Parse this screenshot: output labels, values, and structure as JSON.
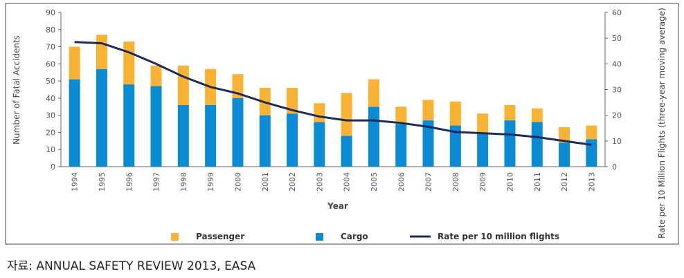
{
  "chart_data": {
    "type": "bar",
    "stacked": true,
    "xlabel": "Year",
    "ylabel": "Number of Fatal Accidents",
    "y2label": "Rate per 10 Million Flights (three-year moving average)",
    "categories": [
      "1994",
      "1995",
      "1996",
      "1997",
      "1998",
      "1999",
      "2000",
      "2001",
      "2002",
      "2003",
      "2004",
      "2005",
      "2006",
      "2007",
      "2008",
      "2009",
      "2010",
      "2011",
      "2012",
      "2013"
    ],
    "series": [
      {
        "name": "Cargo",
        "color": "#0b8bd3",
        "values": [
          51,
          57,
          48,
          47,
          36,
          36,
          40,
          30,
          31,
          26,
          18,
          35,
          25,
          27,
          24,
          20,
          27,
          26,
          14,
          16
        ]
      },
      {
        "name": "Passenger",
        "color": "#f8b334",
        "values": [
          19,
          20,
          25,
          12,
          23,
          21,
          14,
          16,
          15,
          11,
          25,
          16,
          10,
          12,
          14,
          11,
          9,
          8,
          9,
          8
        ]
      },
      {
        "name": "Rate per 10 million flights",
        "type": "line",
        "axis": "y2",
        "color": "#1d2a5e",
        "values": [
          48.5,
          48,
          44.5,
          40,
          35,
          31,
          28.5,
          25,
          22,
          19.5,
          18,
          18,
          17,
          15.5,
          13.5,
          13,
          12.5,
          11.5,
          10,
          8.5
        ]
      }
    ],
    "legend_order": [
      1,
      0,
      2
    ],
    "ylim": [
      0,
      90
    ],
    "yticks": [
      0,
      10,
      20,
      30,
      40,
      50,
      60,
      70,
      80,
      90
    ],
    "y2lim": [
      0,
      60
    ],
    "y2ticks": [
      0,
      10,
      20,
      30,
      40,
      50,
      60
    ],
    "grid": false,
    "source": "자료: ANNUAL SAFETY REVIEW 2013, EASA"
  }
}
